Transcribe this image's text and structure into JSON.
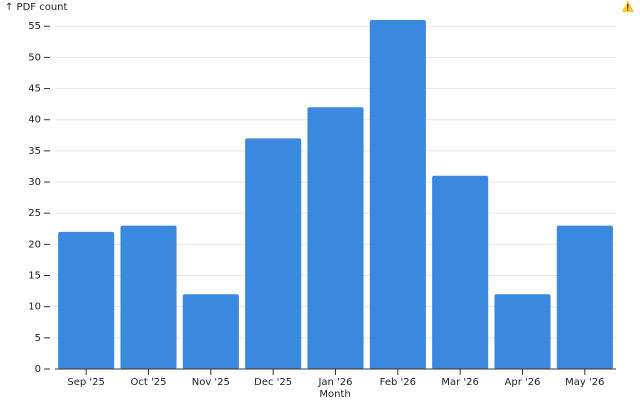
{
  "chart_data": {
    "type": "bar",
    "y_label": "↑ PDF count",
    "x_label": "Month",
    "warning": "⚠️",
    "categories": [
      "Sep '25",
      "Oct '25",
      "Nov '25",
      "Dec '25",
      "Jan '26",
      "Feb '26",
      "Mar '26",
      "Apr '26",
      "May '26"
    ],
    "values": [
      22,
      23,
      12,
      37,
      42,
      56,
      31,
      12,
      23
    ],
    "color": "#3a89de",
    "ylim": [
      0,
      56
    ],
    "yticks": [
      0,
      5,
      10,
      15,
      20,
      25,
      30,
      35,
      40,
      45,
      50,
      55
    ],
    "grid": true
  }
}
